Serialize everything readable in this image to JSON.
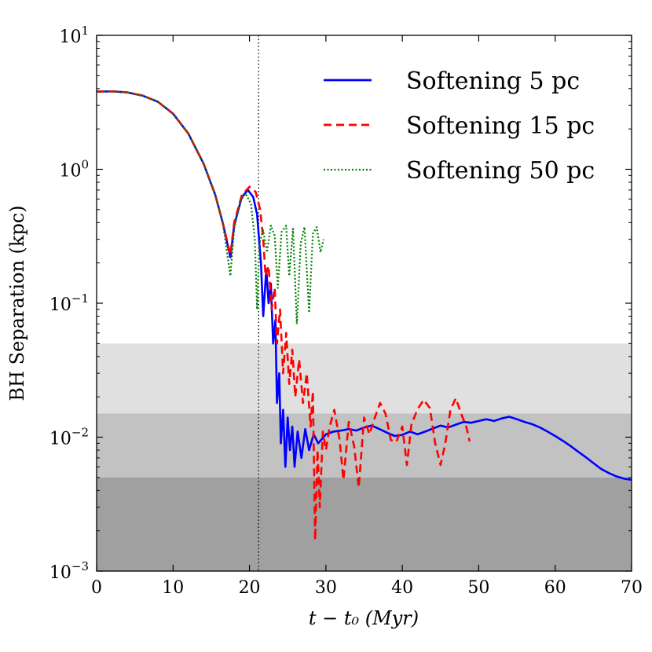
{
  "chart_data": {
    "type": "line",
    "title": "",
    "xlabel": "t − t₀ (Myr)",
    "ylabel": "BH Separation (kpc)",
    "xlim": [
      0,
      70
    ],
    "ylim": [
      0.001,
      10
    ],
    "yscale": "log",
    "grid": false,
    "legend_position": "top-right",
    "x_ticks": [
      0,
      10,
      20,
      30,
      40,
      50,
      60,
      70
    ],
    "x_tick_labels": [
      "0",
      "10",
      "20",
      "30",
      "40",
      "50",
      "60",
      "70"
    ],
    "y_ticks": [
      0.001,
      0.01,
      0.1,
      1,
      10
    ],
    "y_tick_labels": [
      {
        "base": "10",
        "exp": "−3"
      },
      {
        "base": "10",
        "exp": "−2"
      },
      {
        "base": "10",
        "exp": "−1"
      },
      {
        "base": "10",
        "exp": "0"
      },
      {
        "base": "10",
        "exp": "1"
      }
    ],
    "shaded_bands": [
      {
        "y0": 0.015,
        "y1": 0.05,
        "color": "#e0e0e0"
      },
      {
        "y0": 0.005,
        "y1": 0.015,
        "color": "#c2c2c2"
      },
      {
        "y0": 0.001,
        "y1": 0.005,
        "color": "#a0a0a0"
      }
    ],
    "vertical_line": {
      "x": 21.2,
      "style": "dotted",
      "color": "#000000"
    },
    "series": [
      {
        "name": "Softening 5 pc",
        "color": "#0000ff",
        "style": "solid",
        "points": [
          [
            0,
            3.8
          ],
          [
            2,
            3.82
          ],
          [
            4,
            3.75
          ],
          [
            6,
            3.55
          ],
          [
            8,
            3.2
          ],
          [
            10,
            2.6
          ],
          [
            12,
            1.85
          ],
          [
            14,
            1.1
          ],
          [
            15.5,
            0.65
          ],
          [
            16.5,
            0.4
          ],
          [
            17.5,
            0.22
          ],
          [
            18,
            0.38
          ],
          [
            19,
            0.62
          ],
          [
            19.8,
            0.7
          ],
          [
            20.5,
            0.62
          ],
          [
            21,
            0.46
          ],
          [
            21.5,
            0.2
          ],
          [
            21.8,
            0.08
          ],
          [
            22.2,
            0.18
          ],
          [
            22.5,
            0.1
          ],
          [
            22.8,
            0.14
          ],
          [
            23.1,
            0.05
          ],
          [
            23.4,
            0.075
          ],
          [
            23.6,
            0.018
          ],
          [
            23.9,
            0.03
          ],
          [
            24.1,
            0.009
          ],
          [
            24.4,
            0.016
          ],
          [
            24.7,
            0.006
          ],
          [
            25,
            0.014
          ],
          [
            25.3,
            0.008
          ],
          [
            25.6,
            0.012
          ],
          [
            25.9,
            0.006
          ],
          [
            26.3,
            0.011
          ],
          [
            26.8,
            0.007
          ],
          [
            27.3,
            0.0115
          ],
          [
            27.8,
            0.008
          ],
          [
            28.4,
            0.0105
          ],
          [
            29,
            0.009
          ],
          [
            30,
            0.0105
          ],
          [
            31,
            0.011
          ],
          [
            32,
            0.0112
          ],
          [
            33,
            0.0115
          ],
          [
            34,
            0.0112
          ],
          [
            35,
            0.0118
          ],
          [
            36,
            0.0122
          ],
          [
            37,
            0.0115
          ],
          [
            38,
            0.0108
          ],
          [
            39,
            0.0102
          ],
          [
            40,
            0.0104
          ],
          [
            41,
            0.011
          ],
          [
            42,
            0.0105
          ],
          [
            43,
            0.011
          ],
          [
            44,
            0.0116
          ],
          [
            45,
            0.0122
          ],
          [
            46,
            0.0118
          ],
          [
            47,
            0.0124
          ],
          [
            48,
            0.013
          ],
          [
            49,
            0.0128
          ],
          [
            50,
            0.0132
          ],
          [
            51,
            0.0136
          ],
          [
            52,
            0.0132
          ],
          [
            53,
            0.0138
          ],
          [
            54,
            0.0142
          ],
          [
            55,
            0.0136
          ],
          [
            56,
            0.013
          ],
          [
            57,
            0.0125
          ],
          [
            58,
            0.0118
          ],
          [
            59,
            0.011
          ],
          [
            60,
            0.0102
          ],
          [
            61,
            0.0094
          ],
          [
            62,
            0.0086
          ],
          [
            63,
            0.0078
          ],
          [
            64,
            0.0071
          ],
          [
            65,
            0.0064
          ],
          [
            66,
            0.0058
          ],
          [
            67,
            0.0054
          ],
          [
            68,
            0.0051
          ],
          [
            69,
            0.0049
          ],
          [
            70,
            0.0048
          ]
        ]
      },
      {
        "name": "Softening 15 pc",
        "color": "#ff0000",
        "style": "dashed",
        "points": [
          [
            0,
            3.8
          ],
          [
            2,
            3.82
          ],
          [
            4,
            3.75
          ],
          [
            6,
            3.55
          ],
          [
            8,
            3.2
          ],
          [
            10,
            2.6
          ],
          [
            12,
            1.85
          ],
          [
            14,
            1.1
          ],
          [
            15.5,
            0.65
          ],
          [
            16.5,
            0.4
          ],
          [
            17.5,
            0.23
          ],
          [
            18,
            0.4
          ],
          [
            19,
            0.64
          ],
          [
            20,
            0.74
          ],
          [
            20.8,
            0.68
          ],
          [
            21.4,
            0.5
          ],
          [
            21.8,
            0.3
          ],
          [
            22.1,
            0.16
          ],
          [
            22.5,
            0.19
          ],
          [
            22.9,
            0.09
          ],
          [
            23.3,
            0.13
          ],
          [
            23.6,
            0.05
          ],
          [
            24,
            0.09
          ],
          [
            24.4,
            0.03
          ],
          [
            24.8,
            0.06
          ],
          [
            25.2,
            0.025
          ],
          [
            25.6,
            0.045
          ],
          [
            26,
            0.02
          ],
          [
            26.5,
            0.038
          ],
          [
            27,
            0.018
          ],
          [
            27.5,
            0.03
          ],
          [
            28,
            0.012
          ],
          [
            28.3,
            0.022
          ],
          [
            28.6,
            0.0017
          ],
          [
            28.9,
            0.008
          ],
          [
            29.2,
            0.003
          ],
          [
            29.6,
            0.011
          ],
          [
            30,
            0.008
          ],
          [
            30.5,
            0.012
          ],
          [
            31.1,
            0.016
          ],
          [
            31.8,
            0.0095
          ],
          [
            32.3,
            0.0048
          ],
          [
            33,
            0.013
          ],
          [
            33.7,
            0.0085
          ],
          [
            34.3,
            0.0042
          ],
          [
            35,
            0.014
          ],
          [
            35.7,
            0.0105
          ],
          [
            36.4,
            0.014
          ],
          [
            37.1,
            0.018
          ],
          [
            37.8,
            0.015
          ],
          [
            38.5,
            0.0095
          ],
          [
            39.2,
            0.0092
          ],
          [
            40,
            0.012
          ],
          [
            40.6,
            0.0062
          ],
          [
            41.2,
            0.0125
          ],
          [
            42,
            0.0162
          ],
          [
            42.8,
            0.019
          ],
          [
            43.6,
            0.0165
          ],
          [
            44.3,
            0.009
          ],
          [
            45,
            0.0062
          ],
          [
            45.6,
            0.0088
          ],
          [
            46.3,
            0.016
          ],
          [
            47,
            0.0195
          ],
          [
            47.8,
            0.0145
          ],
          [
            48.4,
            0.0118
          ],
          [
            48.8,
            0.0093
          ]
        ]
      },
      {
        "name": "Softening 50 pc",
        "color": "#008000",
        "style": "dotted",
        "points": [
          [
            0,
            3.8
          ],
          [
            2,
            3.82
          ],
          [
            4,
            3.75
          ],
          [
            6,
            3.55
          ],
          [
            8,
            3.2
          ],
          [
            10,
            2.6
          ],
          [
            12,
            1.85
          ],
          [
            14,
            1.1
          ],
          [
            15.5,
            0.65
          ],
          [
            16.5,
            0.4
          ],
          [
            17.5,
            0.16
          ],
          [
            18,
            0.36
          ],
          [
            18.8,
            0.58
          ],
          [
            19.5,
            0.66
          ],
          [
            20.2,
            0.55
          ],
          [
            20.7,
            0.3
          ],
          [
            21,
            0.09
          ],
          [
            21.3,
            0.28
          ],
          [
            21.8,
            0.35
          ],
          [
            22.3,
            0.24
          ],
          [
            22.8,
            0.38
          ],
          [
            23.3,
            0.32
          ],
          [
            23.7,
            0.13
          ],
          [
            24.2,
            0.34
          ],
          [
            24.8,
            0.38
          ],
          [
            25.2,
            0.16
          ],
          [
            25.7,
            0.36
          ],
          [
            26.2,
            0.07
          ],
          [
            26.7,
            0.28
          ],
          [
            27.2,
            0.37
          ],
          [
            27.8,
            0.085
          ],
          [
            28.3,
            0.33
          ],
          [
            28.8,
            0.37
          ],
          [
            29.3,
            0.24
          ],
          [
            29.7,
            0.3
          ]
        ]
      }
    ]
  }
}
